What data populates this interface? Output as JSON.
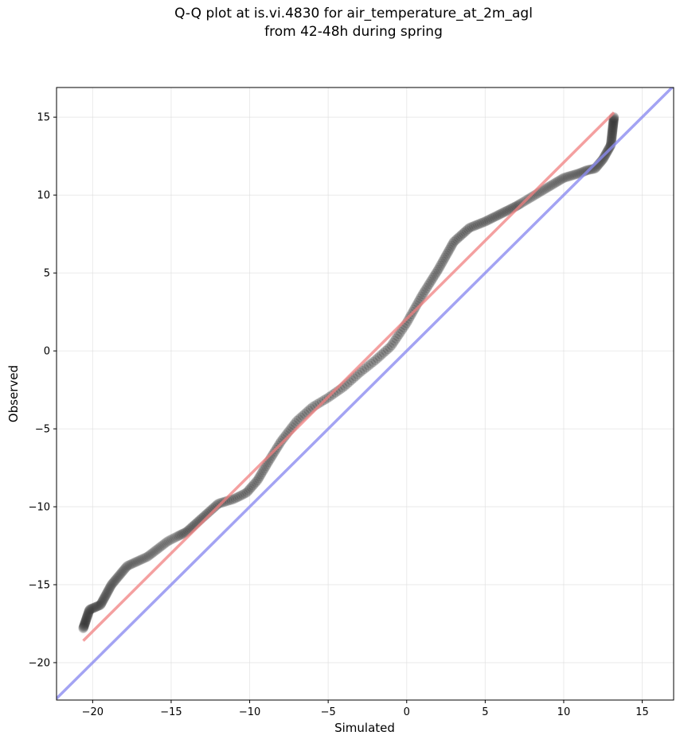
{
  "title": {
    "line1": "Q-Q plot at is.vi.4830 for air_temperature_at_2m_agl",
    "line2": "from 42-48h during spring"
  },
  "chart_data": {
    "type": "scatter",
    "title": "Q-Q plot at is.vi.4830 for air_temperature_at_2m_agl\nfrom 42-48h during spring",
    "xlabel": "Simulated",
    "ylabel": "Observed",
    "xlim": [
      -22.3,
      17.0
    ],
    "ylim": [
      -22.4,
      16.9
    ],
    "xticks": [
      -20,
      -15,
      -10,
      -5,
      0,
      5,
      10,
      15
    ],
    "yticks": [
      -20,
      -15,
      -10,
      -5,
      0,
      5,
      10,
      15
    ],
    "xtick_labels": [
      "−20",
      "−15",
      "−10",
      "−5",
      "0",
      "5",
      "10",
      "15"
    ],
    "ytick_labels": [
      "−20",
      "−15",
      "−10",
      "−5",
      "0",
      "5",
      "10",
      "15"
    ],
    "grid": true,
    "colors": {
      "points": "#333333",
      "fit_line": "#f08080",
      "identity_line": "#8c8cf0"
    },
    "fit_line": {
      "x": [
        -20.6,
        13.2
      ],
      "y": [
        -18.6,
        15.3
      ]
    },
    "identity_line": {
      "x": [
        -22.3,
        17.0
      ],
      "y": [
        -22.3,
        17.0
      ]
    },
    "quantile_curve": {
      "x": [
        -20.6,
        -20.2,
        -19.5,
        -18.8,
        -17.8,
        -16.5,
        -15.2,
        -14,
        -13,
        -12,
        -11,
        -10.2,
        -9.5,
        -8.8,
        -8,
        -7,
        -6,
        -5,
        -4,
        -3,
        -2,
        -1,
        0,
        1,
        2,
        3,
        4,
        5,
        6,
        7,
        8,
        9,
        10,
        11,
        11.5,
        12,
        12.5,
        13,
        13.2
      ],
      "y": [
        -17.8,
        -16.6,
        -16.3,
        -15,
        -13.8,
        -13.2,
        -12.2,
        -11.6,
        -10.7,
        -9.8,
        -9.5,
        -9.1,
        -8.3,
        -7.1,
        -5.8,
        -4.5,
        -3.6,
        -3.0,
        -2.3,
        -1.4,
        -0.6,
        0.3,
        1.8,
        3.6,
        5.2,
        7.0,
        7.9,
        8.3,
        8.8,
        9.3,
        9.9,
        10.5,
        11.1,
        11.4,
        11.6,
        11.7,
        12.3,
        13.2,
        15.0
      ]
    },
    "n_points": 440
  }
}
